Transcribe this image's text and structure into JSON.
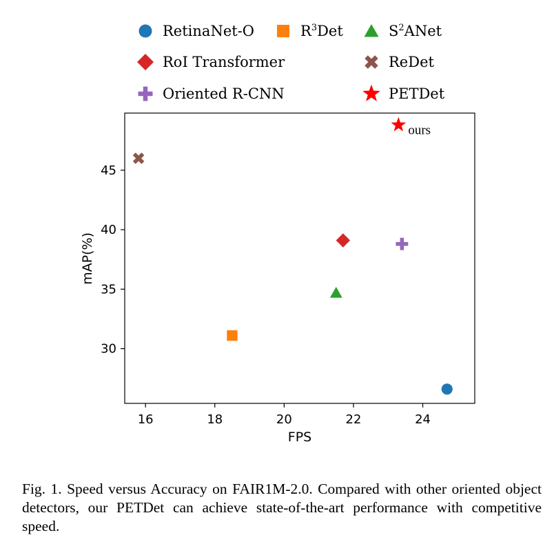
{
  "chart_data": {
    "type": "scatter",
    "xlabel": "FPS",
    "ylabel": "mAP(%)",
    "xlim": [
      15.4,
      25.5
    ],
    "ylim": [
      25.4,
      49.8
    ],
    "xticks": [
      16,
      18,
      20,
      22,
      24
    ],
    "yticks": [
      30,
      35,
      40,
      45
    ],
    "grid": false,
    "legend_position": "top (above plot)",
    "series": [
      {
        "name": "RetinaNet-O",
        "marker": "circle",
        "color": "#1f77b4",
        "x": [
          24.7
        ],
        "y": [
          26.6
        ]
      },
      {
        "name": "R3Det",
        "label_base": "R",
        "label_sup": "3",
        "label_tail": "Det",
        "marker": "square",
        "color": "#ff7f0e",
        "x": [
          18.5
        ],
        "y": [
          31.1
        ]
      },
      {
        "name": "S2ANet",
        "label_base": "S",
        "label_sup": "2",
        "label_tail": "ANet",
        "marker": "triangle",
        "color": "#2ca02c",
        "x": [
          21.5
        ],
        "y": [
          34.7
        ]
      },
      {
        "name": "RoI Transformer",
        "marker": "diamond",
        "color": "#d62728",
        "x": [
          21.7
        ],
        "y": [
          39.1
        ]
      },
      {
        "name": "ReDet",
        "marker": "x-cross",
        "color": "#8c564b",
        "x": [
          15.8
        ],
        "y": [
          46.0
        ]
      },
      {
        "name": "Oriented R-CNN",
        "marker": "plus",
        "color": "#9467bd",
        "x": [
          23.4
        ],
        "y": [
          38.8
        ]
      },
      {
        "name": "PETDet",
        "marker": "star",
        "color": "#ff0000",
        "x": [
          23.3
        ],
        "y": [
          48.8
        ]
      }
    ],
    "annotations": [
      {
        "text": "ours",
        "x": 23.3,
        "y": 48.8
      }
    ]
  },
  "caption": "Fig. 1.  Speed versus Accuracy on FAIR1M-2.0. Compared with other oriented object detectors, our PETDet can achieve state-of-the-art performance with competitive speed."
}
